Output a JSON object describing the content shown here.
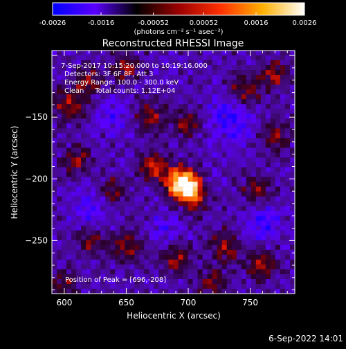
{
  "colorbar": {
    "tick_labels": [
      "-0.0026",
      "-0.0016",
      "-0.00052",
      "0.00052",
      "0.0016",
      "0.0026"
    ],
    "tick_values": [
      -0.0026,
      -0.0016,
      -0.00052,
      0.00052,
      0.0016,
      0.0026
    ],
    "range": [
      -0.0026,
      0.0026
    ],
    "units_label": "(photons cm⁻² s⁻¹ asec⁻²)",
    "colormap": [
      "#0000ff",
      "#5a00ff",
      "#000000",
      "#9a0000",
      "#ff3000",
      "#ffb000",
      "#ffffff"
    ]
  },
  "footer": {
    "timestamp": "6-Sep-2022 14:01"
  },
  "chart_data": {
    "type": "heatmap",
    "title": "Reconstructed RHESSI Image",
    "xlabel": "Heliocentric X (arcsec)",
    "ylabel": "Heliocentric Y (arcsec)",
    "xlim": [
      590,
      786
    ],
    "ylim": [
      -293,
      -96
    ],
    "x_ticks": [
      600,
      650,
      700,
      750
    ],
    "y_ticks": [
      -150,
      -200,
      -250
    ],
    "x_tick_labels": [
      "600",
      "650",
      "700",
      "750"
    ],
    "y_tick_labels": [
      "−150",
      "−200",
      "−250"
    ],
    "annotations": [
      "7-Sep-2017 10:15:20.000 to 10:19:16.000",
      "Detectors: 3F 6F 8F, Att 3",
      "Energy Range: 100.0 - 300.0 keV",
      "Clean     Total counts: 1.12E+04"
    ],
    "peak_annotation": "Position of Peak = [696,-208]",
    "peak": {
      "x": 696,
      "y": -208
    },
    "blobs": [
      {
        "x": 693,
        "y": -203,
        "amp": 1.0,
        "sigma": 9
      },
      {
        "x": 702,
        "y": -207,
        "amp": 0.7,
        "sigma": 7
      },
      {
        "x": 672,
        "y": -190,
        "amp": 0.55,
        "sigma": 8
      },
      {
        "x": 705,
        "y": -220,
        "amp": 0.4,
        "sigma": 7
      },
      {
        "x": 605,
        "y": -140,
        "amp": 0.45,
        "sigma": 10
      },
      {
        "x": 620,
        "y": -120,
        "amp": 0.4,
        "sigma": 8
      },
      {
        "x": 650,
        "y": -110,
        "amp": 0.42,
        "sigma": 8
      },
      {
        "x": 670,
        "y": -150,
        "amp": 0.4,
        "sigma": 9
      },
      {
        "x": 700,
        "y": -155,
        "amp": 0.42,
        "sigma": 8
      },
      {
        "x": 745,
        "y": -130,
        "amp": 0.45,
        "sigma": 10
      },
      {
        "x": 770,
        "y": -115,
        "amp": 0.45,
        "sigma": 8
      },
      {
        "x": 770,
        "y": -165,
        "amp": 0.4,
        "sigma": 9
      },
      {
        "x": 755,
        "y": -210,
        "amp": 0.35,
        "sigma": 9
      },
      {
        "x": 610,
        "y": -185,
        "amp": 0.42,
        "sigma": 8
      },
      {
        "x": 640,
        "y": -210,
        "amp": 0.38,
        "sigma": 8
      },
      {
        "x": 650,
        "y": -255,
        "amp": 0.42,
        "sigma": 9
      },
      {
        "x": 620,
        "y": -250,
        "amp": 0.38,
        "sigma": 8
      },
      {
        "x": 690,
        "y": -265,
        "amp": 0.4,
        "sigma": 9
      },
      {
        "x": 730,
        "y": -255,
        "amp": 0.4,
        "sigma": 9
      },
      {
        "x": 760,
        "y": -270,
        "amp": 0.45,
        "sigma": 9
      },
      {
        "x": 720,
        "y": -285,
        "amp": 0.38,
        "sigma": 8
      },
      {
        "x": 600,
        "y": -285,
        "amp": 0.35,
        "sigma": 8
      }
    ],
    "voids": [
      {
        "x": 735,
        "y": -150,
        "amp": 0.55,
        "sigma": 14
      },
      {
        "x": 640,
        "y": -150,
        "amp": 0.35,
        "sigma": 10
      },
      {
        "x": 620,
        "y": -225,
        "amp": 0.4,
        "sigma": 10
      },
      {
        "x": 760,
        "y": -235,
        "amp": 0.45,
        "sigma": 11
      },
      {
        "x": 680,
        "y": -240,
        "amp": 0.3,
        "sigma": 10
      }
    ]
  }
}
